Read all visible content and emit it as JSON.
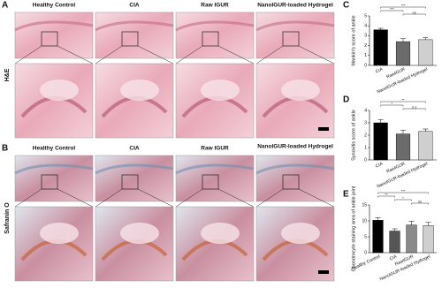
{
  "figure": {
    "A": {
      "label": "A",
      "stain": "H&E",
      "columns": [
        "Healthy Control",
        "CIA",
        "Raw IGUR",
        "NanoIGUR-loaded Hydrogel"
      ]
    },
    "B": {
      "label": "B",
      "stain": "Safranin O",
      "columns": [
        "Healthy Control",
        "CIA",
        "Raw IGUR",
        "NanoIGUR-loaded Hydrogel"
      ]
    }
  },
  "chart_data": [
    {
      "type": "bar",
      "panel_label": "C",
      "ylabel": "Mankin's score of ankle",
      "categories": [
        "CIA",
        "RawIGUR",
        "NanoIGUR-loaded Hydrogel"
      ],
      "values": [
        3.6,
        2.4,
        2.6
      ],
      "errors": [
        0.15,
        0.3,
        0.2
      ],
      "colors": [
        "#000000",
        "#6b6b6b",
        "#cfcfcf"
      ],
      "ylim": [
        0,
        5
      ],
      "yticks": [
        0,
        1,
        2,
        3,
        4,
        5
      ],
      "annotations": [
        "***",
        "***",
        "ns"
      ]
    },
    {
      "type": "bar",
      "panel_label": "D",
      "ylabel": "Synovitis score of ankle",
      "categories": [
        "CIA",
        "RawIGUR",
        "NanoIGUR-loaded Hydrogel"
      ],
      "values": [
        3.0,
        2.1,
        2.3
      ],
      "errors": [
        0.25,
        0.3,
        0.2
      ],
      "colors": [
        "#000000",
        "#6b6b6b",
        "#cfcfcf"
      ],
      "ylim": [
        0,
        4
      ],
      "yticks": [
        0,
        1,
        2,
        3,
        4
      ],
      "annotations": [
        "**",
        "*",
        "n.s"
      ]
    },
    {
      "type": "bar",
      "panel_label": "E",
      "ylabel": "Chondrocyte staining area of ankle joint",
      "categories": [
        "Healthy Control",
        "CIA",
        "RawIGUR",
        "NanoIGUR-loaded Hydrogel"
      ],
      "values": [
        10.2,
        6.8,
        8.7,
        8.5
      ],
      "errors": [
        0.8,
        0.7,
        1.2,
        1.0
      ],
      "colors": [
        "#000000",
        "#555555",
        "#8a8a8a",
        "#cfcfcf"
      ],
      "ylim": [
        0,
        15
      ],
      "yticks": [
        0,
        5,
        10,
        15
      ],
      "annotations": [
        "***",
        "**",
        "*",
        "ns"
      ]
    }
  ]
}
